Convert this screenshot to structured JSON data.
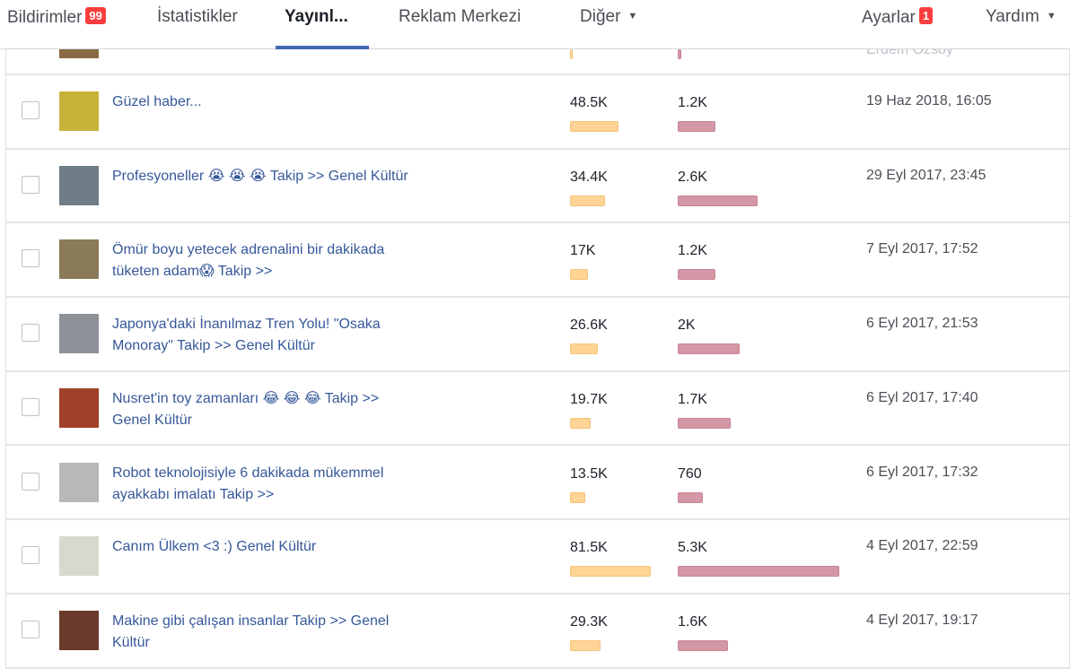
{
  "nav": {
    "notifications": "Bildirimler",
    "notifications_badge": "99",
    "insights": "İstatistikler",
    "publishing": "Yayınl...",
    "ad_center": "Reklam Merkezi",
    "more": "Diğer",
    "settings": "Ayarlar",
    "settings_badge": "1",
    "help": "Yardım"
  },
  "partial_row": {
    "author": "Erdem Özsoy"
  },
  "posts": [
    {
      "title": "Güzel haber...",
      "reach": {
        "value": 48500,
        "label": "48.5K"
      },
      "engagement": {
        "value": 1200,
        "label": "1.2K"
      },
      "date": "19 Haz 2018, 16:05"
    },
    {
      "title": "Profesyoneller 😭 😭 😭 Takip >> Genel Kültür",
      "reach": {
        "value": 34400,
        "label": "34.4K"
      },
      "engagement": {
        "value": 2600,
        "label": "2.6K"
      },
      "date": "29 Eyl 2017, 23:45"
    },
    {
      "title": "Ömür boyu yetecek adrenalini bir dakikada tüketen adam😱 Takip >>",
      "reach": {
        "value": 17000,
        "label": "17K"
      },
      "engagement": {
        "value": 1200,
        "label": "1.2K"
      },
      "date": "7 Eyl 2017, 17:52"
    },
    {
      "title": "Japonya'daki İnanılmaz Tren Yolu! \"Osaka Monoray\" Takip >> Genel Kültür",
      "reach": {
        "value": 26600,
        "label": "26.6K"
      },
      "engagement": {
        "value": 2000,
        "label": "2K"
      },
      "date": "6 Eyl 2017, 21:53"
    },
    {
      "title": "Nusret'in toy zamanları 😂 😂 😂 Takip >> Genel Kültür",
      "reach": {
        "value": 19700,
        "label": "19.7K"
      },
      "engagement": {
        "value": 1700,
        "label": "1.7K"
      },
      "date": "6 Eyl 2017, 17:40"
    },
    {
      "title": "Robot teknolojisiyle 6 dakikada mükemmel ayakkabı imalatı Takip >>",
      "reach": {
        "value": 13500,
        "label": "13.5K"
      },
      "engagement": {
        "value": 760,
        "label": "760"
      },
      "date": "6 Eyl 2017, 17:32"
    },
    {
      "title": "Canım Ülkem <3 :) Genel Kültür",
      "reach": {
        "value": 81500,
        "label": "81.5K"
      },
      "engagement": {
        "value": 5300,
        "label": "5.3K"
      },
      "date": "4 Eyl 2017, 22:59"
    },
    {
      "title": "Makine gibi çalışan insanlar Takip >> Genel Kültür",
      "reach": {
        "value": 29300,
        "label": "29.3K"
      },
      "engagement": {
        "value": 1600,
        "label": "1.6K"
      },
      "date": "4 Eyl 2017, 19:17"
    }
  ]
}
